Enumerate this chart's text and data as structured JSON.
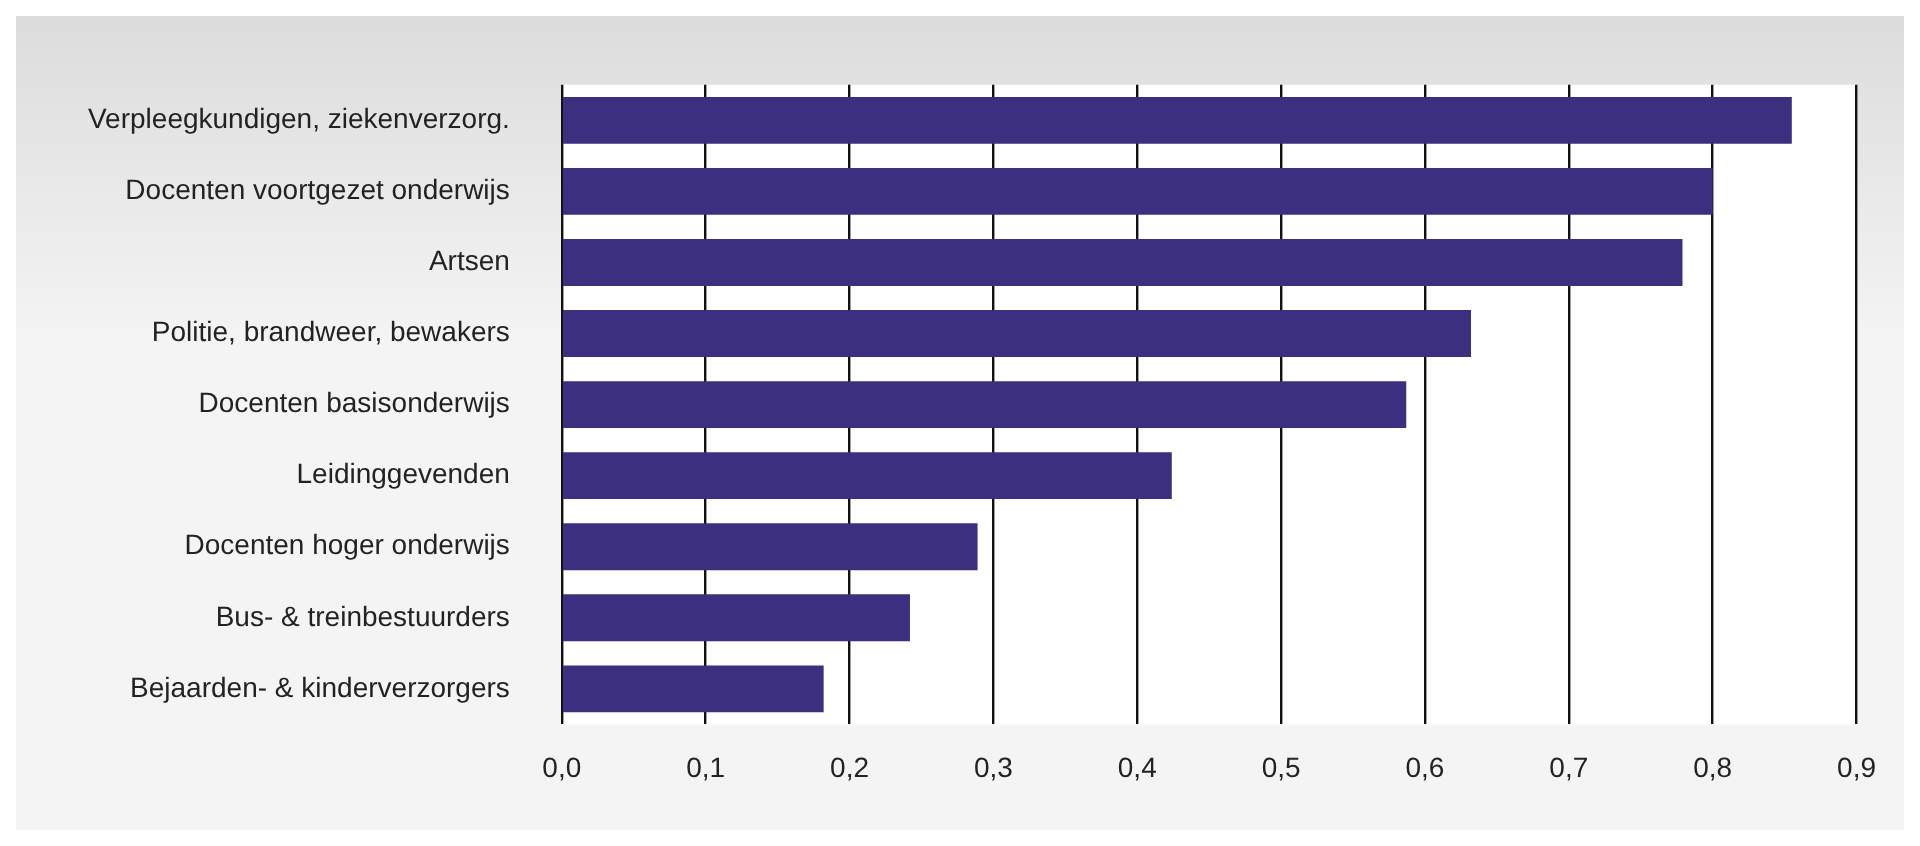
{
  "chart_data": {
    "type": "bar",
    "orientation": "horizontal",
    "categories": [
      "Verpleegkundigen, ziekenverzorg.",
      "Docenten voortgezet onderwijs",
      "Artsen",
      "Politie, brandweer, bewakers",
      "Docenten basisonderwijs",
      "Leidinggevenden",
      "Docenten hoger onderwijs",
      "Bus- & treinbestuurders",
      "Bejaarden- & kinderverzorgers"
    ],
    "values": [
      0.855,
      0.8,
      0.779,
      0.632,
      0.587,
      0.424,
      0.289,
      0.242,
      0.182
    ],
    "color": "#3d2f7f",
    "xlim": [
      0,
      0.9
    ],
    "xticks": [
      {
        "value": 0,
        "label": "0,0"
      },
      {
        "value": 0.1,
        "label": "0,1"
      },
      {
        "value": 0.2,
        "label": "0,2"
      },
      {
        "value": 0.3,
        "label": "0,3"
      },
      {
        "value": 0.4,
        "label": "0,4"
      },
      {
        "value": 0.5,
        "label": "0,5"
      },
      {
        "value": 0.6,
        "label": "0,6"
      },
      {
        "value": 0.7,
        "label": "0,7"
      },
      {
        "value": 0.8,
        "label": "0,8"
      },
      {
        "value": 0.9,
        "label": "0,9"
      }
    ],
    "grid": "x",
    "legend": false
  }
}
